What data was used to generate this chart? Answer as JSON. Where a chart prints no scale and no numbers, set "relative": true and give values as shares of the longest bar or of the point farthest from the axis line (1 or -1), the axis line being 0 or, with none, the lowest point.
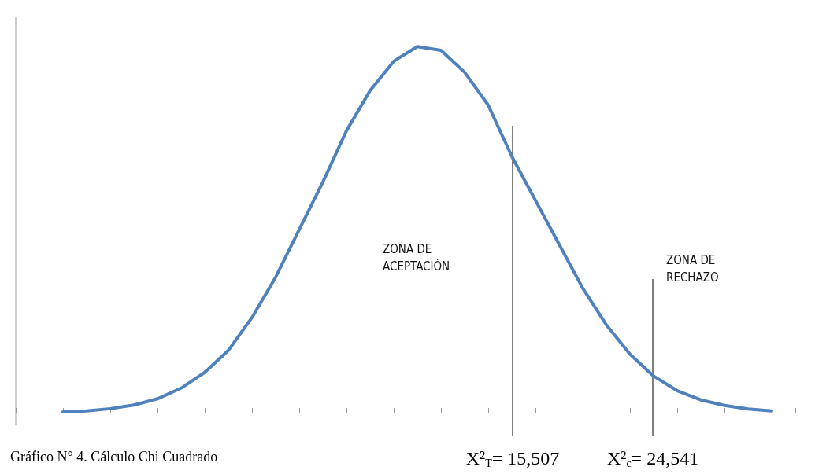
{
  "chart_data": {
    "type": "line",
    "title": "Gráfico N° 4. Cálculo Chi Cuadrado",
    "relative": true,
    "categories": [
      null,
      null,
      null,
      null,
      null,
      null,
      null,
      null,
      null,
      null,
      null,
      null,
      null,
      null,
      null,
      null,
      null,
      null,
      null,
      null,
      null,
      null,
      null,
      null,
      null,
      null,
      null,
      null,
      null,
      null,
      null,
      null,
      null,
      null
    ],
    "series": [
      {
        "color": "#4f81bd",
        "values": [
          null,
          null,
          0.002,
          0.005,
          0.011,
          0.021,
          0.038,
          0.067,
          0.11,
          0.17,
          0.26,
          0.37,
          0.5,
          0.63,
          0.77,
          0.88,
          0.96,
          1,
          0.99,
          0.93,
          0.84,
          0.7,
          0.58,
          0.46,
          0.34,
          0.24,
          0.16,
          0.1,
          0.06,
          0.035,
          0.02,
          0.01,
          0.005,
          null
        ]
      }
    ],
    "annotations": [
      "ZONA DE ACEPTACIÓN",
      "ZONA DE RECHAZO",
      "X²$_{T}$= 15,507",
      "X²$_{c}$= 24,541"
    ],
    "marker": "none",
    "line_style": "solid",
    "grid": false
  }
}
